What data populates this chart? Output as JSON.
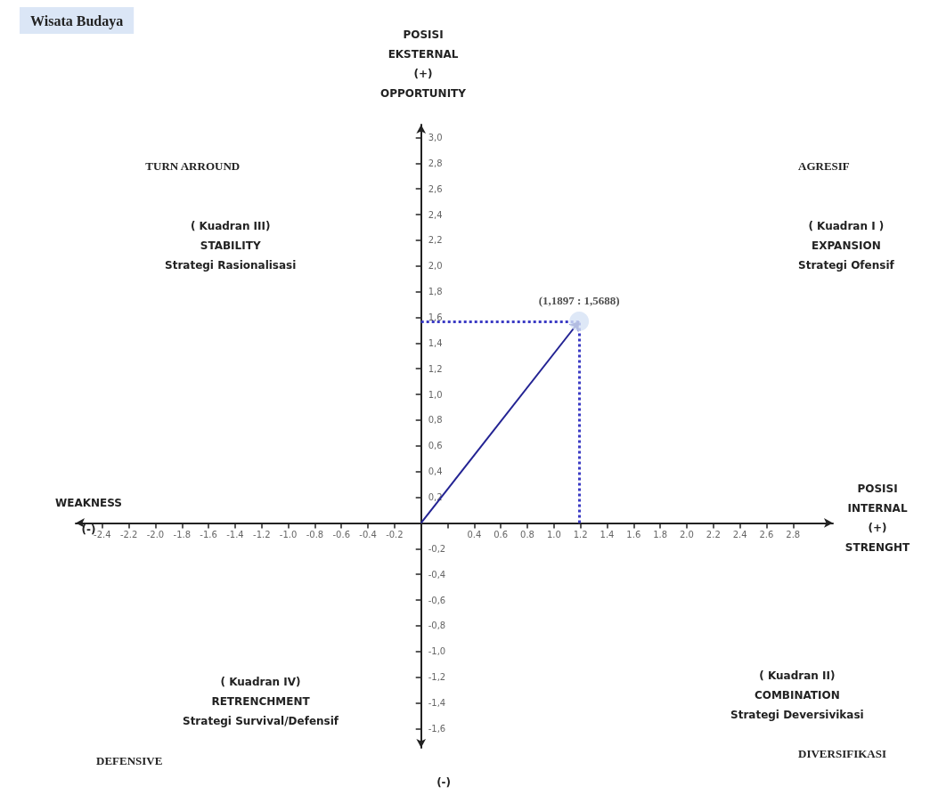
{
  "chart_data": {
    "type": "scatter",
    "title": "Wisata Budaya",
    "xlabel": "POSISI\nINTERNAL\n(+)\nSTRENGHT",
    "ylabel": "POSISI\nEKSTERNAL\n(+)\nOPPORTUNITY",
    "annotations": [
      "TURN ARROUND",
      "( Kuadran III)\nSTABILITY\nStrategi Rasionalisasi",
      "AGRESIF",
      "( Kuadran I )\nEXPANSION\nStrategi Ofensif",
      "( Kuadran IV)\nRETRENCHMENT\nStrategi Survival/Defensif",
      "DEFENSIVE",
      "( Kuadran II)\nCOMBINATION\nStrategi Deversivikasi",
      "DIVERSIFIKASI",
      "WEAKNESS\n(-)",
      "(-)\nTHREAT"
    ],
    "x": [
      1.1897
    ],
    "values": [
      1.5688
    ],
    "value_labels": [
      "(1,1897 : 1,5688)"
    ],
    "color": "#d6e2f5",
    "marker": "circle",
    "xlim": [
      -2.6,
      3.1
    ],
    "ylim": [
      -1.75,
      3.1
    ],
    "xticks": [
      -2.4,
      -2.2,
      {
        "value": -2.0,
        "label": "-2.0"
      },
      -1.8,
      -1.6,
      -1.4,
      -1.2,
      {
        "value": -1.0,
        "label": "-1.0"
      },
      -0.8,
      -0.6,
      -0.4,
      -0.2,
      {
        "value": 0.2,
        "label": null
      },
      0.4,
      0.6,
      0.8,
      {
        "value": 1.0,
        "label": "1.0"
      },
      1.2,
      1.4,
      1.6,
      1.8,
      {
        "value": 2.0,
        "label": "2.0"
      },
      2.2,
      2.4,
      2.6,
      2.8
    ],
    "yticks": [
      {
        "value": -1.6,
        "label": "-1,6"
      },
      {
        "value": -1.4,
        "label": "-1,4"
      },
      {
        "value": -1.2,
        "label": "-1,2"
      },
      {
        "value": -1.0,
        "label": "-1,0"
      },
      {
        "value": -0.8,
        "label": "-0,8"
      },
      {
        "value": -0.6,
        "label": "-0,6"
      },
      {
        "value": -0.4,
        "label": "-0,4"
      },
      {
        "value": -0.2,
        "label": "-0,2"
      },
      {
        "value": 0.2,
        "label": "0,2"
      },
      {
        "value": 0.4,
        "label": "0,4"
      },
      {
        "value": 0.6,
        "label": "0,6"
      },
      {
        "value": 0.8,
        "label": "0,8"
      },
      {
        "value": 1.0,
        "label": "1,0"
      },
      {
        "value": 1.2,
        "label": "1,2"
      },
      {
        "value": 1.4,
        "label": "1,4"
      },
      {
        "value": 1.6,
        "label": "1,6"
      },
      {
        "value": 1.8,
        "label": "1,8"
      },
      {
        "value": 2.0,
        "label": "2,0"
      },
      {
        "value": 2.2,
        "label": "2,2"
      },
      {
        "value": 2.4,
        "label": "2,4"
      },
      {
        "value": 2.6,
        "label": "2,6"
      },
      {
        "value": 2.8,
        "label": "2,8"
      },
      {
        "value": 3.0,
        "label": "3,0"
      }
    ],
    "grid": false
  }
}
